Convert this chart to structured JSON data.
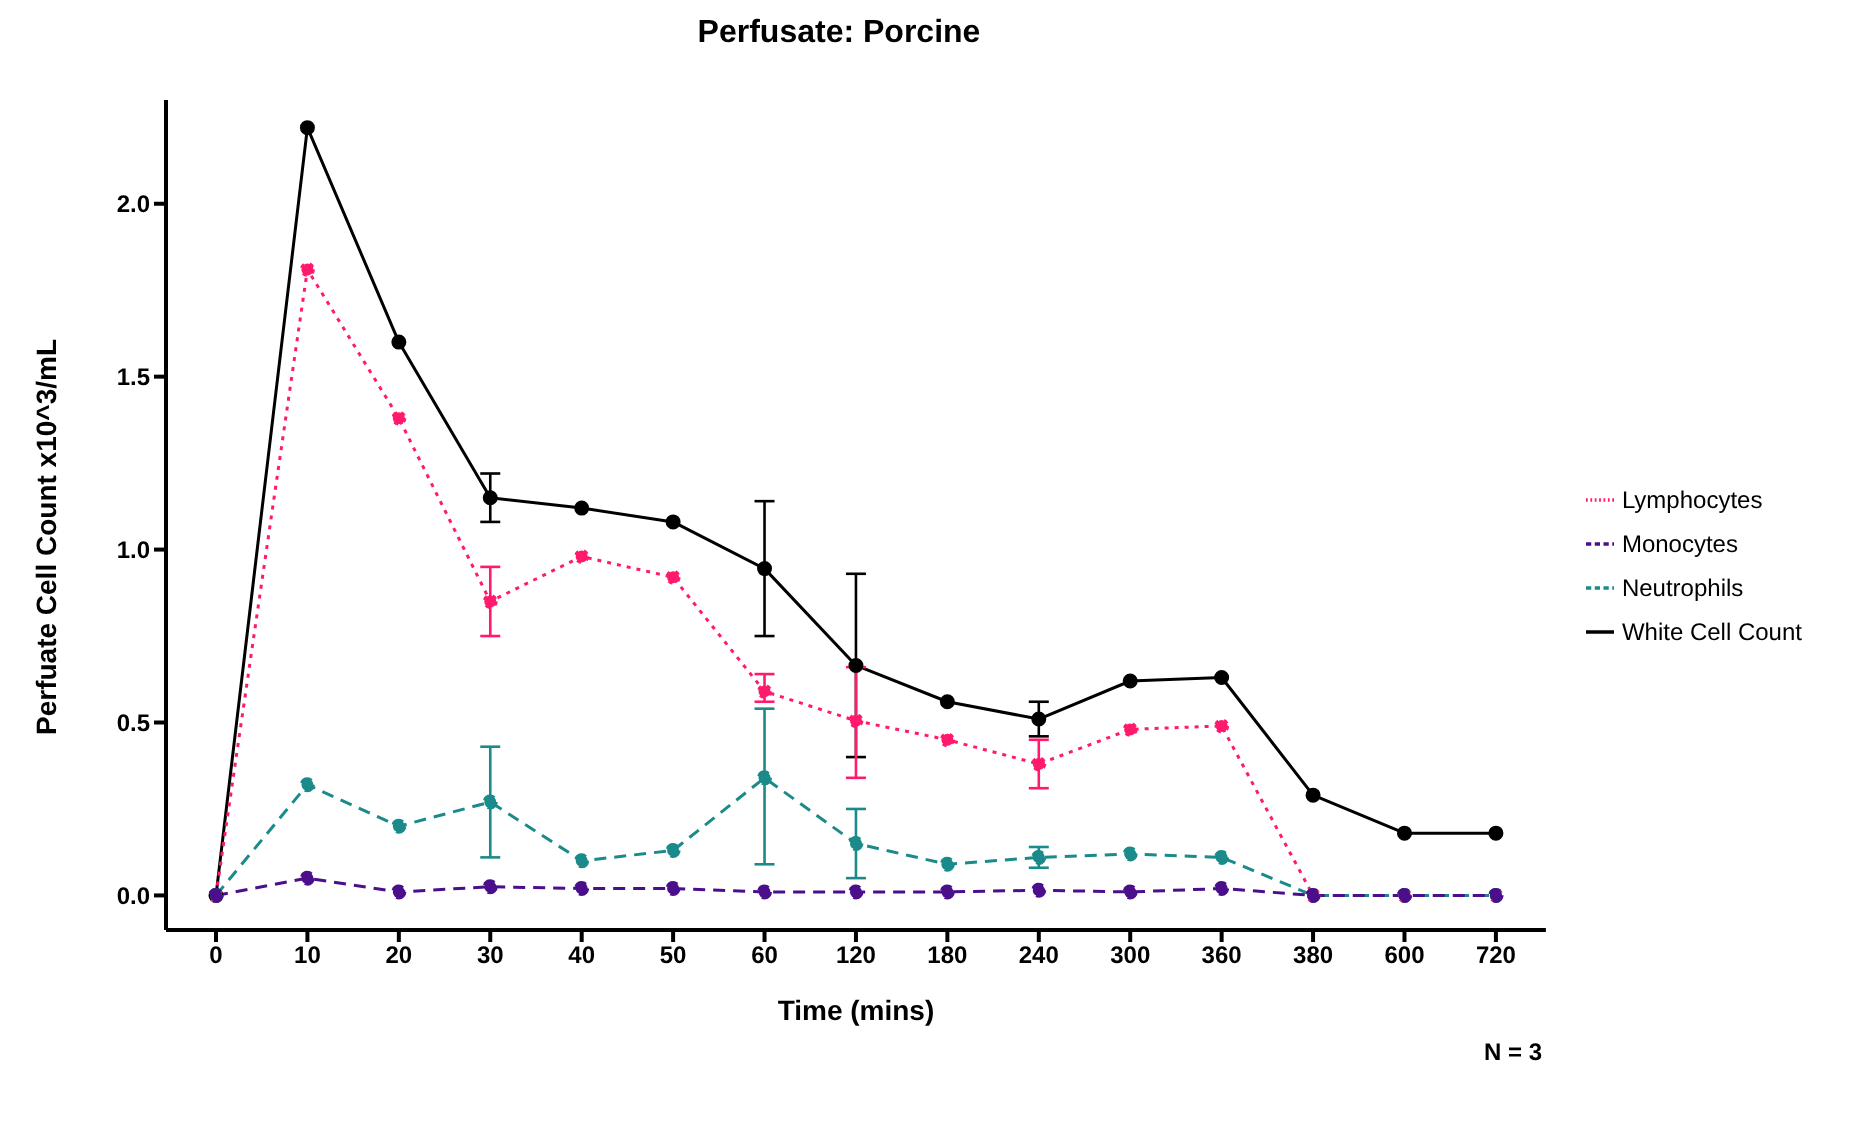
{
  "chart_data": {
    "type": "line",
    "title": "Perfusate: Porcine",
    "xlabel": "Time (mins)",
    "ylabel": "Perfuate Cell Count x10^3/mL",
    "categories": [
      "0",
      "10",
      "20",
      "30",
      "40",
      "50",
      "60",
      "120",
      "180",
      "240",
      "300",
      "360",
      "380",
      "600",
      "720"
    ],
    "series": [
      {
        "name": "White Cell Count",
        "color": "#000000",
        "line_style": "solid",
        "values": [
          0,
          2.22,
          1.6,
          1.15,
          1.12,
          1.08,
          0.945,
          0.665,
          0.56,
          0.51,
          0.62,
          0.63,
          0.29,
          0.18,
          0.18
        ],
        "errors": [
          null,
          null,
          null,
          [
            1.08,
            1.22
          ],
          null,
          null,
          [
            0.75,
            1.14
          ],
          [
            0.4,
            0.93
          ],
          null,
          [
            0.46,
            0.56
          ],
          null,
          null,
          null,
          null,
          null
        ]
      },
      {
        "name": "Lymphocytes",
        "color": "#ff1a6e",
        "line_style": "dotted",
        "values": [
          0,
          1.81,
          1.38,
          0.85,
          0.98,
          0.92,
          0.59,
          0.505,
          0.45,
          0.38,
          0.48,
          0.49,
          0,
          0,
          0
        ],
        "errors": [
          null,
          null,
          null,
          [
            0.75,
            0.95
          ],
          null,
          null,
          [
            0.56,
            0.64
          ],
          [
            0.34,
            0.66
          ],
          null,
          [
            0.31,
            0.45
          ],
          null,
          null,
          null,
          null,
          null
        ]
      },
      {
        "name": "Neutrophils",
        "color": "#1a8a8a",
        "line_style": "dashed",
        "values": [
          0,
          0.32,
          0.2,
          0.27,
          0.1,
          0.13,
          0.34,
          0.15,
          0.09,
          0.11,
          0.12,
          0.11,
          0,
          0,
          0
        ],
        "errors": [
          null,
          null,
          null,
          [
            0.11,
            0.43
          ],
          null,
          null,
          [
            0.09,
            0.54
          ],
          [
            0.05,
            0.25
          ],
          null,
          [
            0.08,
            0.14
          ],
          null,
          null,
          null,
          null,
          null
        ]
      },
      {
        "name": "Monocytes",
        "color": "#4b0f8c",
        "line_style": "dashed",
        "values": [
          0,
          0.05,
          0.01,
          0.025,
          0.02,
          0.02,
          0.01,
          0.01,
          0.01,
          0.015,
          0.01,
          0.02,
          0,
          0,
          0
        ]
      }
    ],
    "ylim": [
      -0.1,
      2.3
    ],
    "yticks": [
      {
        "value": 0,
        "label": "0.0"
      },
      {
        "value": 0.5,
        "label": "0.5"
      },
      {
        "value": 1,
        "label": "1.0"
      },
      {
        "value": 1.5,
        "label": "1.5"
      },
      {
        "value": 2,
        "label": "2.0"
      }
    ],
    "marker": "circle",
    "grid": false,
    "legend": "right",
    "annotations": [
      "N = 3"
    ]
  }
}
